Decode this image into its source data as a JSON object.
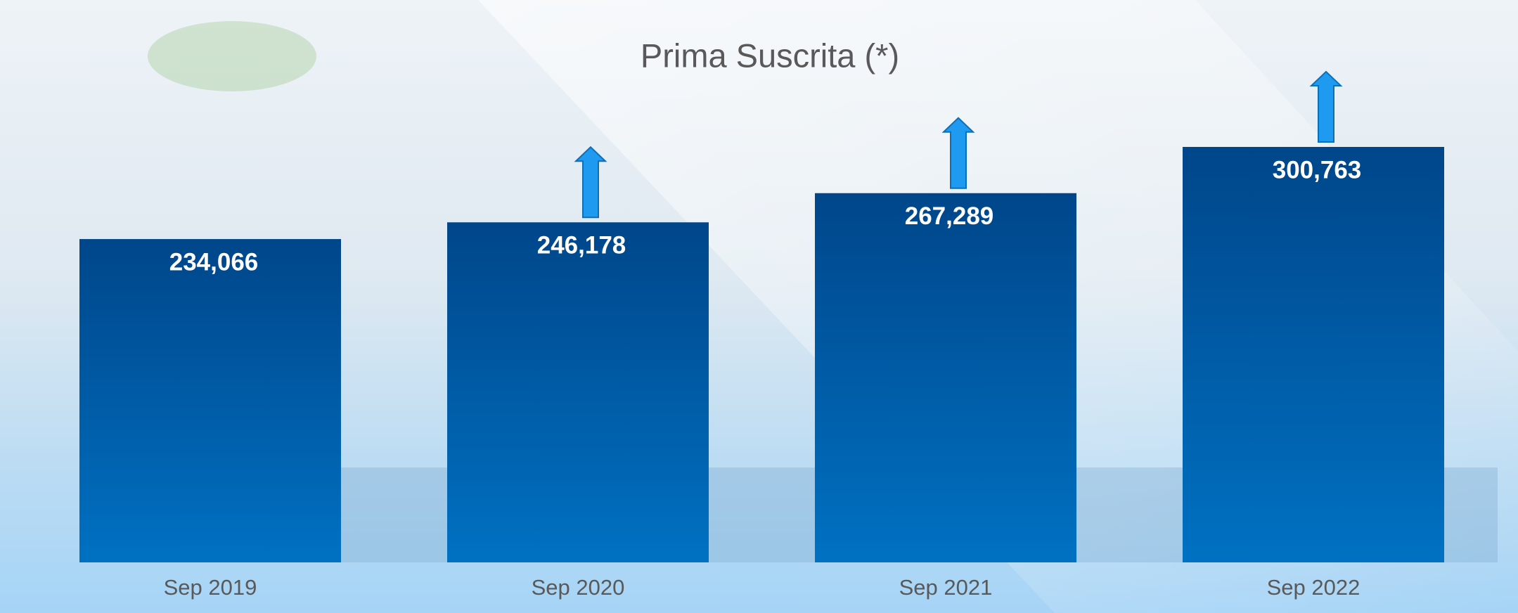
{
  "chart_data": {
    "type": "bar",
    "title": "Prima Suscrita (*)",
    "categories": [
      "Sep 2019",
      "Sep 2020",
      "Sep 2021",
      "Sep 2022"
    ],
    "values": [
      234066,
      246178,
      267289,
      300763
    ],
    "value_labels": [
      "234,066",
      "246,178",
      "267,289",
      "300,763"
    ]
  }
}
